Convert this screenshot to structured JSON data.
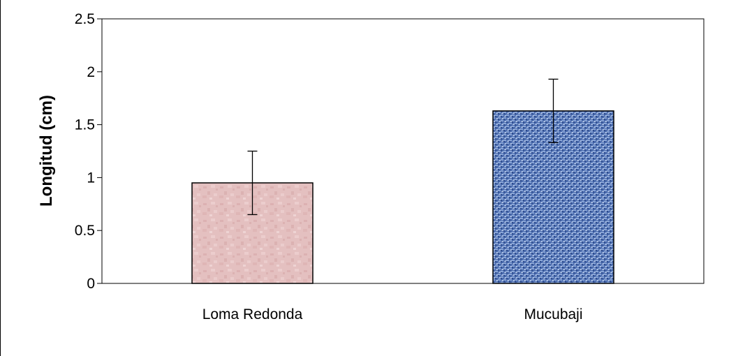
{
  "chart_data": {
    "type": "bar",
    "title": "",
    "xlabel": "",
    "ylabel": "Longitud (cm)",
    "categories": [
      "Loma Redonda",
      "Mucubaji"
    ],
    "values": [
      0.95,
      1.63
    ],
    "error": [
      0.3,
      0.3
    ],
    "ylim": [
      0,
      2.5
    ],
    "yticks": [
      0,
      0.5,
      1,
      1.5,
      2,
      2.5
    ],
    "ytick_labels": [
      "0",
      "0.5",
      "1",
      "1.5",
      "2",
      "2.5"
    ],
    "grid": false,
    "legend": "none",
    "bar_styles": [
      {
        "fill": "#e3bcbc",
        "texture": "pink-marble",
        "stroke": "#000000"
      },
      {
        "fill": "#6f8ec4",
        "texture": "blue-burlap",
        "stroke": "#000000"
      }
    ]
  }
}
